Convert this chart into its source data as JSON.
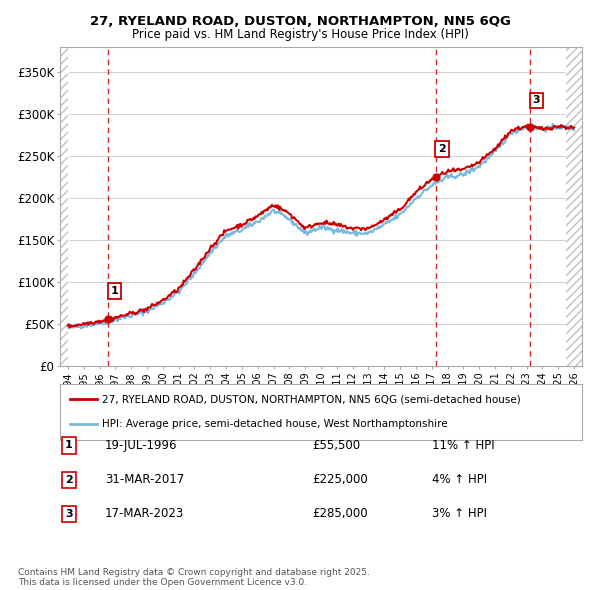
{
  "title_line1": "27, RYELAND ROAD, DUSTON, NORTHAMPTON, NN5 6QG",
  "title_line2": "Price paid vs. HM Land Registry's House Price Index (HPI)",
  "xlim_start": 1993.5,
  "xlim_end": 2026.5,
  "ylim_bottom": 0,
  "ylim_top": 380000,
  "yticks": [
    0,
    50000,
    100000,
    150000,
    200000,
    250000,
    300000,
    350000
  ],
  "ytick_labels": [
    "£0",
    "£50K",
    "£100K",
    "£150K",
    "£200K",
    "£250K",
    "£300K",
    "£350K"
  ],
  "sale_dates": [
    1996.55,
    2017.25,
    2023.21
  ],
  "sale_prices": [
    55500,
    225000,
    285000
  ],
  "sale_labels": [
    "1",
    "2",
    "3"
  ],
  "hpi_line_color": "#7ab8e0",
  "sale_line_color": "#cc0000",
  "sale_dot_color": "#cc0000",
  "vline_color": "#cc0000",
  "legend_entry1": "27, RYELAND ROAD, DUSTON, NORTHAMPTON, NN5 6QG (semi-detached house)",
  "legend_entry2": "HPI: Average price, semi-detached house, West Northamptonshire",
  "table_rows": [
    {
      "num": "1",
      "date": "19-JUL-1996",
      "price": "£55,500",
      "hpi": "11% ↑ HPI"
    },
    {
      "num": "2",
      "date": "31-MAR-2017",
      "price": "£225,000",
      "hpi": "4% ↑ HPI"
    },
    {
      "num": "3",
      "date": "17-MAR-2023",
      "price": "£285,000",
      "hpi": "3% ↑ HPI"
    }
  ],
  "footnote": "Contains HM Land Registry data © Crown copyright and database right 2025.\nThis data is licensed under the Open Government Licence v3.0."
}
